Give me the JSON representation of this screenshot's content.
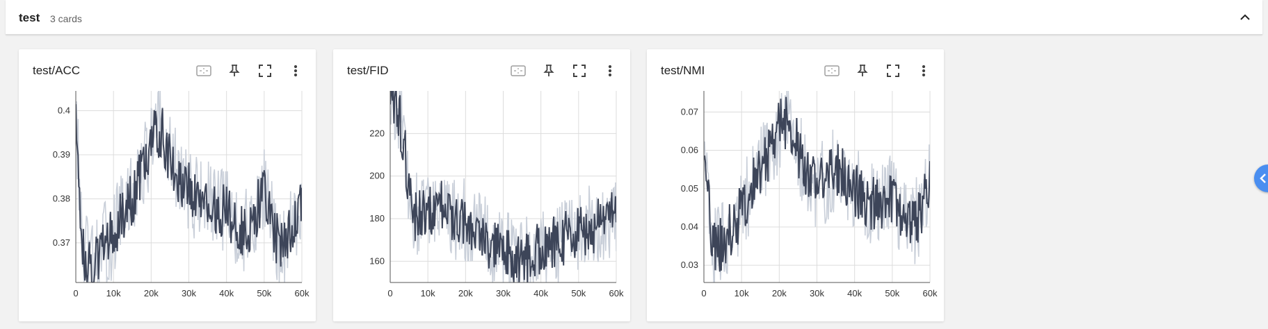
{
  "group": {
    "title": "test",
    "count": "3 cards"
  },
  "icons": {
    "collapse": "chevron-up-icon",
    "fit": "fit-domain-icon",
    "pin": "pin-icon",
    "fullscreen": "fullscreen-icon",
    "menu": "more-vert-icon",
    "side_toggle": "chevron-left-icon"
  },
  "colors": {
    "line": "#3d4559",
    "raw_line": "#c9cfd9",
    "grid": "#dcdcdc",
    "accent": "#4a8ef0"
  },
  "chart_data": [
    {
      "type": "line",
      "title": "test/ACC",
      "xlim": [
        0,
        60000
      ],
      "ylim": [
        0.361,
        0.4045
      ],
      "xticks": [
        0,
        10000,
        20000,
        30000,
        40000,
        50000,
        60000
      ],
      "xtick_labels": [
        "0",
        "10k",
        "20k",
        "30k",
        "40k",
        "50k",
        "60k"
      ],
      "yticks": [
        0.37,
        0.38,
        0.39,
        0.4
      ],
      "ytick_labels": [
        "0.37",
        "0.38",
        "0.39",
        "0.4"
      ],
      "grid": true,
      "series": [
        {
          "x": [
            0,
            1500,
            3000,
            5000,
            7500,
            10000,
            12500,
            15000,
            17500,
            20000,
            22500,
            25000,
            27500,
            30000,
            32500,
            35000,
            37500,
            40000,
            42500,
            45000,
            47500,
            50000,
            52500,
            55000,
            57500,
            60000
          ],
          "values": [
            0.402,
            0.37,
            0.366,
            0.365,
            0.369,
            0.372,
            0.377,
            0.38,
            0.386,
            0.393,
            0.396,
            0.389,
            0.385,
            0.382,
            0.38,
            0.379,
            0.377,
            0.378,
            0.374,
            0.372,
            0.376,
            0.382,
            0.373,
            0.368,
            0.374,
            0.381
          ]
        }
      ]
    },
    {
      "type": "line",
      "title": "test/FID",
      "xlim": [
        0,
        60000
      ],
      "ylim": [
        150,
        240
      ],
      "xticks": [
        0,
        10000,
        20000,
        30000,
        40000,
        50000,
        60000
      ],
      "xtick_labels": [
        "0",
        "10k",
        "20k",
        "30k",
        "40k",
        "50k",
        "60k"
      ],
      "yticks": [
        160,
        180,
        200,
        220
      ],
      "ytick_labels": [
        "160",
        "180",
        "200",
        "220"
      ],
      "grid": true,
      "series": [
        {
          "x": [
            0,
            1000,
            2000,
            3000,
            4000,
            5000,
            6000,
            7500,
            10000,
            12500,
            15000,
            17500,
            20000,
            22500,
            25000,
            27500,
            30000,
            32500,
            35000,
            37500,
            40000,
            42500,
            45000,
            47500,
            50000,
            52500,
            55000,
            57500,
            60000
          ],
          "values": [
            240,
            236,
            230,
            222,
            210,
            195,
            183,
            180,
            183,
            186,
            185,
            181,
            178,
            175,
            171,
            167,
            163,
            161,
            160,
            163,
            166,
            168,
            170,
            172,
            174,
            175,
            177,
            181,
            185
          ]
        }
      ]
    },
    {
      "type": "line",
      "title": "test/NMI",
      "xlim": [
        0,
        60000
      ],
      "ylim": [
        0.0255,
        0.0755
      ],
      "xticks": [
        0,
        10000,
        20000,
        30000,
        40000,
        50000,
        60000
      ],
      "xtick_labels": [
        "0",
        "10k",
        "20k",
        "30k",
        "40k",
        "50k",
        "60k"
      ],
      "yticks": [
        0.03,
        0.04,
        0.05,
        0.06,
        0.07
      ],
      "ytick_labels": [
        "0.03",
        "0.04",
        "0.05",
        "0.06",
        "0.07"
      ],
      "grid": true,
      "series": [
        {
          "x": [
            0,
            1500,
            3000,
            5000,
            7500,
            10000,
            12500,
            15000,
            17500,
            20000,
            22500,
            25000,
            27500,
            30000,
            32500,
            35000,
            37500,
            40000,
            42500,
            45000,
            47500,
            50000,
            52500,
            55000,
            57500,
            60000
          ],
          "values": [
            0.064,
            0.042,
            0.034,
            0.036,
            0.04,
            0.044,
            0.05,
            0.055,
            0.06,
            0.066,
            0.068,
            0.06,
            0.054,
            0.05,
            0.052,
            0.055,
            0.053,
            0.05,
            0.048,
            0.046,
            0.045,
            0.048,
            0.044,
            0.04,
            0.043,
            0.052
          ]
        }
      ]
    }
  ]
}
